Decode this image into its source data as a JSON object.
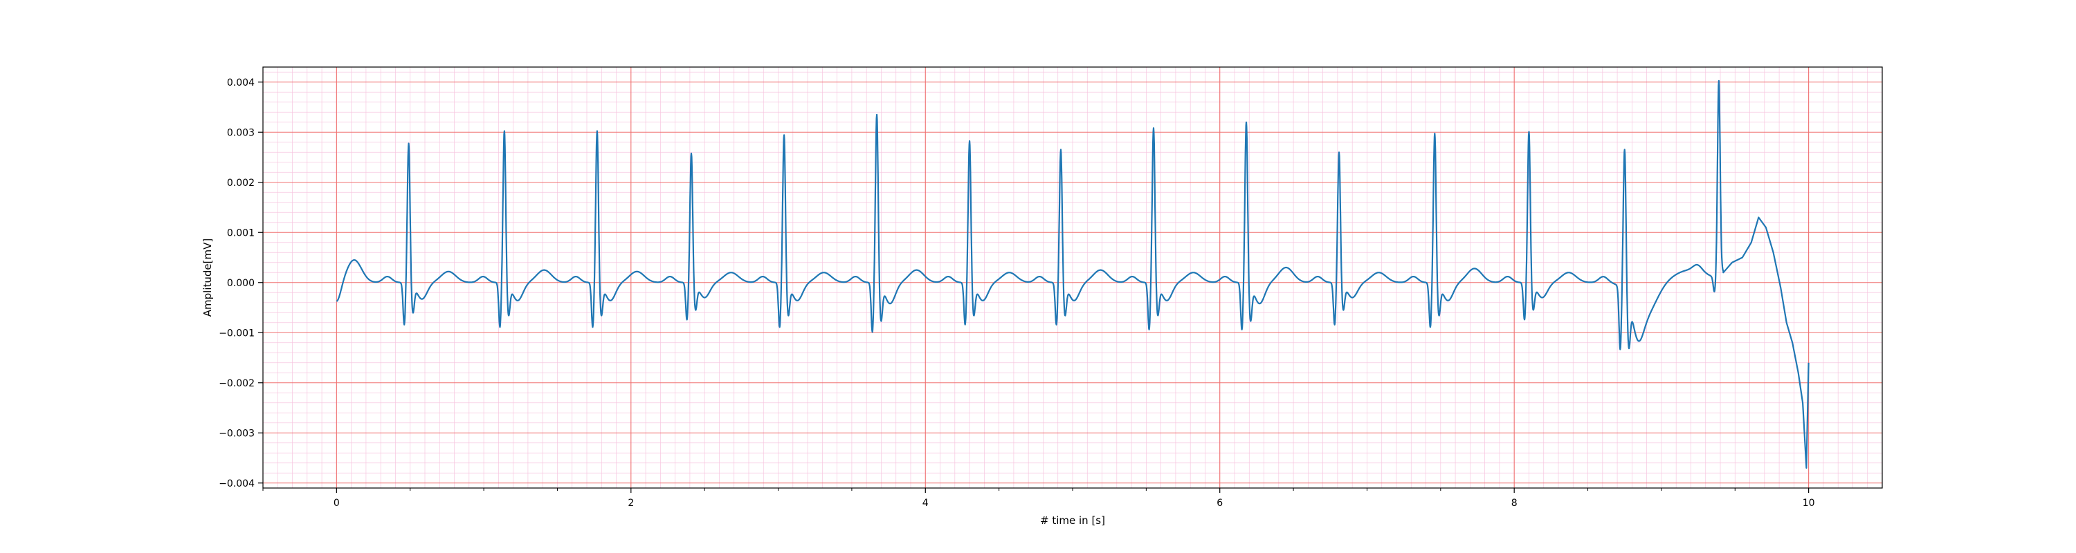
{
  "chart_data": {
    "type": "line",
    "title": "",
    "xlabel": "# time in [s]",
    "ylabel": "Amplitude[mV]",
    "xlim": [
      -0.5,
      10.5
    ],
    "ylim": [
      -0.0041,
      0.0043
    ],
    "xticks": [
      0,
      2,
      4,
      6,
      8,
      10
    ],
    "xtick_labels": [
      "0",
      "2",
      "4",
      "6",
      "8",
      "10"
    ],
    "yticks": [
      -0.004,
      -0.003,
      -0.002,
      -0.001,
      0.0,
      0.001,
      0.002,
      0.003,
      0.004
    ],
    "ytick_labels": [
      "−0.004",
      "−0.003",
      "−0.002",
      "−0.001",
      "0.000",
      "0.001",
      "0.002",
      "0.003",
      "0.004"
    ],
    "grid": "major and minor (ECG paper style)",
    "colors": {
      "line": "#1f77b4",
      "major_grid": "#f07070",
      "minor_grid": "#f7c6e0",
      "axes": "#000000"
    },
    "series": [
      {
        "name": "",
        "beats": [
          {
            "t": 0.49,
            "r": 0.0028,
            "q": -0.00085,
            "s": -0.00055,
            "tw": 0.00022
          },
          {
            "t": 1.14,
            "r": 0.00305,
            "q": -0.0009,
            "s": -0.0006,
            "tw": 0.00025
          },
          {
            "t": 1.77,
            "r": 0.00305,
            "q": -0.0009,
            "s": -0.0006,
            "tw": 0.00022
          },
          {
            "t": 2.41,
            "r": 0.0026,
            "q": -0.00075,
            "s": -0.0005,
            "tw": 0.0002
          },
          {
            "t": 3.04,
            "r": 0.00297,
            "q": -0.0009,
            "s": -0.0006,
            "tw": 0.0002
          },
          {
            "t": 3.67,
            "r": 0.00338,
            "q": -0.001,
            "s": -0.0007,
            "tw": 0.00025
          },
          {
            "t": 4.3,
            "r": 0.00285,
            "q": -0.00085,
            "s": -0.0006,
            "tw": 0.0002
          },
          {
            "t": 4.92,
            "r": 0.00268,
            "q": -0.00085,
            "s": -0.0006,
            "tw": 0.00025
          },
          {
            "t": 5.55,
            "r": 0.00311,
            "q": -0.00095,
            "s": -0.0006,
            "tw": 0.0002
          },
          {
            "t": 6.18,
            "r": 0.00323,
            "q": -0.00095,
            "s": -0.0007,
            "tw": 0.0003
          },
          {
            "t": 6.81,
            "r": 0.00262,
            "q": -0.00085,
            "s": -0.0005,
            "tw": 0.0002
          },
          {
            "t": 7.46,
            "r": 0.003,
            "q": -0.0009,
            "s": -0.0006,
            "tw": 0.00028
          },
          {
            "t": 8.1,
            "r": 0.00303,
            "q": -0.00075,
            "s": -0.0005,
            "tw": 0.0002
          },
          {
            "t": 8.75,
            "r": 0.00288,
            "q": -0.00125,
            "s": -0.0009,
            "tw": 0.0
          },
          {
            "t": 9.39,
            "r": 0.00395,
            "q": -0.0003,
            "s": 0.00015,
            "tw": 0.0
          }
        ],
        "tail": [
          {
            "x": 9.42,
            "y": 0.0002
          },
          {
            "x": 9.48,
            "y": 0.0004
          },
          {
            "x": 9.55,
            "y": 0.0005
          },
          {
            "x": 9.61,
            "y": 0.0008
          },
          {
            "x": 9.66,
            "y": 0.0013
          },
          {
            "x": 9.71,
            "y": 0.0011
          },
          {
            "x": 9.76,
            "y": 0.0006
          },
          {
            "x": 9.81,
            "y": -0.0001
          },
          {
            "x": 9.85,
            "y": -0.0008
          },
          {
            "x": 9.89,
            "y": -0.0012
          },
          {
            "x": 9.93,
            "y": -0.0018
          },
          {
            "x": 9.96,
            "y": -0.0024
          },
          {
            "x": 9.985,
            "y": -0.0037
          },
          {
            "x": 10.0,
            "y": -0.0016
          }
        ]
      }
    ]
  }
}
